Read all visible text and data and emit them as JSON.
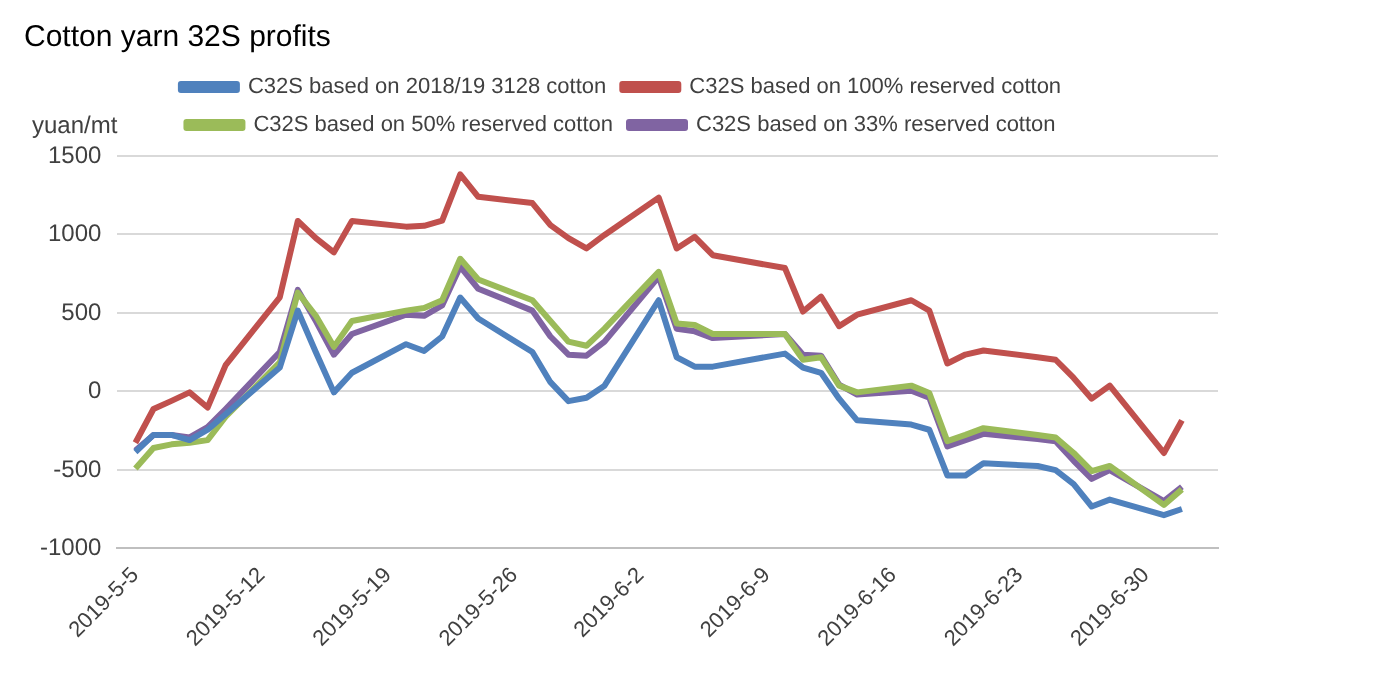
{
  "chart_data": {
    "type": "line",
    "title": "Cotton yarn 32S profits",
    "ylabel": "yuan/mt",
    "x": [
      "2019-05-05",
      "2019-05-06",
      "2019-05-07",
      "2019-05-08",
      "2019-05-09",
      "2019-05-10",
      "2019-05-13",
      "2019-05-14",
      "2019-05-15",
      "2019-05-16",
      "2019-05-17",
      "2019-05-20",
      "2019-05-21",
      "2019-05-22",
      "2019-05-23",
      "2019-05-24",
      "2019-05-27",
      "2019-05-28",
      "2019-05-29",
      "2019-05-30",
      "2019-05-31",
      "2019-06-03",
      "2019-06-04",
      "2019-06-05",
      "2019-06-06",
      "2019-06-10",
      "2019-06-11",
      "2019-06-12",
      "2019-06-13",
      "2019-06-14",
      "2019-06-17",
      "2019-06-18",
      "2019-06-19",
      "2019-06-20",
      "2019-06-21",
      "2019-06-24",
      "2019-06-25",
      "2019-06-26",
      "2019-06-27",
      "2019-06-28",
      "2019-07-01",
      "2019-07-02"
    ],
    "series": [
      {
        "name": "C32S based on 2018/19 3128 cotton",
        "color": "#4f81bd",
        "values": [
          -386,
          -277,
          -277,
          -310,
          -244,
          -145,
          152,
          515,
          250,
          -6,
          119,
          301,
          258,
          350,
          598,
          465,
          251,
          59,
          -62,
          -40,
          37,
          581,
          218,
          158,
          158,
          241,
          152,
          119,
          -46,
          -184,
          -211,
          -244,
          -535,
          -535,
          -458,
          -475,
          -501,
          -590,
          -733,
          -689,
          -788,
          -749
        ]
      },
      {
        "name": "C32S based on 100% reserved cotton",
        "color": "#c0504d",
        "values": [
          -327,
          -112,
          -60,
          -6,
          -102,
          168,
          600,
          1086,
          977,
          886,
          1086,
          1050,
          1055,
          1088,
          1383,
          1240,
          1200,
          1060,
          977,
          911,
          997,
          1235,
          911,
          985,
          868,
          786,
          509,
          604,
          416,
          489,
          581,
          515,
          178,
          235,
          261,
          218,
          202,
          86,
          -46,
          37,
          -392,
          -184
        ]
      },
      {
        "name": "C32S based on 50% reserved cotton",
        "color": "#9bbb59",
        "values": [
          -491,
          -360,
          -337,
          -327,
          -310,
          -161,
          185,
          630,
          482,
          284,
          449,
          515,
          532,
          581,
          845,
          713,
          581,
          449,
          317,
          291,
          400,
          762,
          433,
          423,
          366,
          366,
          202,
          218,
          37,
          -6,
          37,
          -10,
          -317,
          -277,
          -234,
          -277,
          -293,
          -392,
          -508,
          -475,
          -723,
          -624
        ]
      },
      {
        "name": "C32S based on 33% reserved cotton",
        "color": "#8064a2",
        "values": [
          -376,
          -277,
          -277,
          -293,
          -228,
          -112,
          251,
          647,
          449,
          234,
          366,
          489,
          482,
          548,
          796,
          654,
          515,
          350,
          234,
          228,
          317,
          730,
          400,
          383,
          340,
          366,
          234,
          228,
          43,
          -20,
          4,
          -40,
          -350,
          -310,
          -270,
          -303,
          -317,
          -442,
          -557,
          -501,
          -699,
          -607
        ]
      }
    ],
    "xlim": [
      "2019-05-04",
      "2019-07-04"
    ],
    "xticks": [
      {
        "value": "2019-05-05",
        "label": "2019-5-5"
      },
      {
        "value": "2019-05-12",
        "label": "2019-5-12"
      },
      {
        "value": "2019-05-19",
        "label": "2019-5-19"
      },
      {
        "value": "2019-05-26",
        "label": "2019-5-26"
      },
      {
        "value": "2019-06-02",
        "label": "2019-6-2"
      },
      {
        "value": "2019-06-09",
        "label": "2019-6-9"
      },
      {
        "value": "2019-06-16",
        "label": "2019-6-16"
      },
      {
        "value": "2019-06-23",
        "label": "2019-6-23"
      },
      {
        "value": "2019-06-30",
        "label": "2019-6-30"
      }
    ],
    "ylim": [
      -1000,
      1500
    ],
    "yticks": [
      -1000,
      -500,
      0,
      500,
      1000,
      1500
    ],
    "grid": "y",
    "legend": "top",
    "marker": "none",
    "line_style": "solid"
  }
}
